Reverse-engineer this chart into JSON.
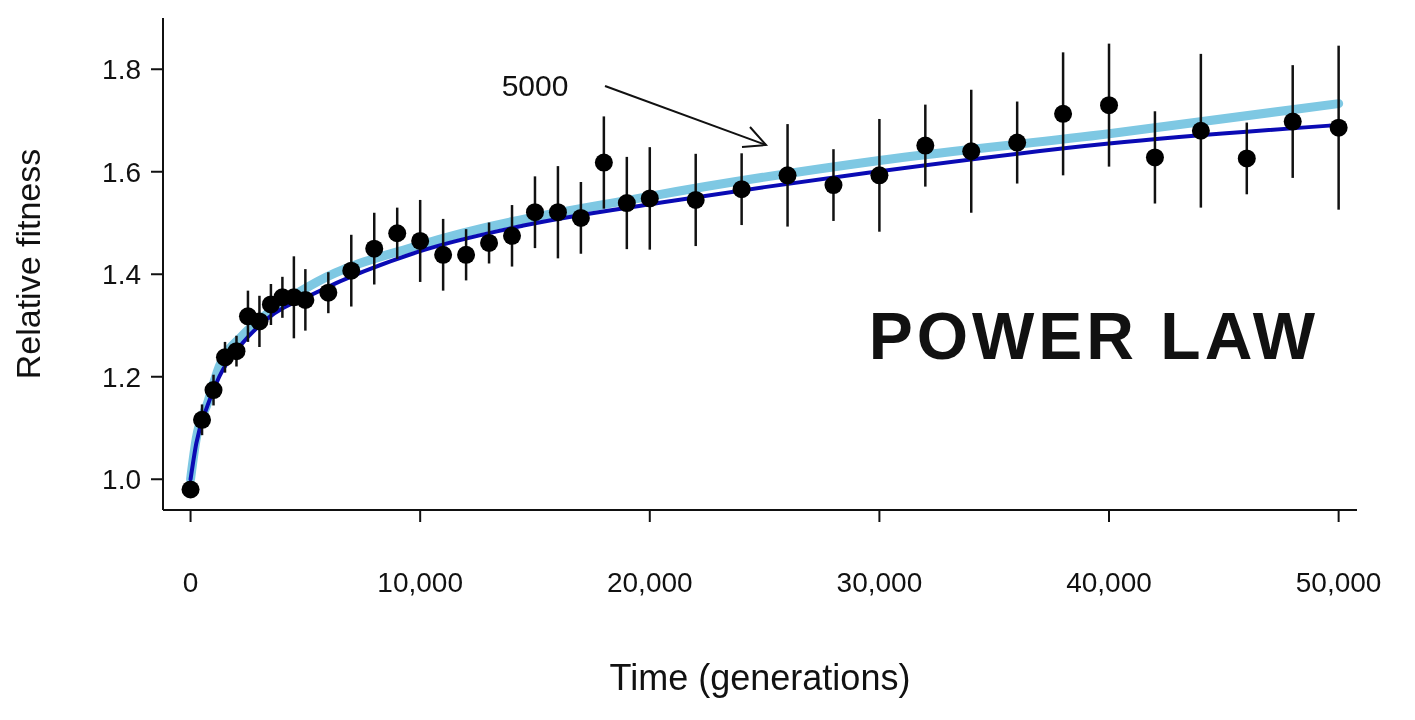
{
  "chart_data": {
    "type": "scatter",
    "xlabel": "Time (generations)",
    "ylabel": "Relative fitness",
    "xlim": [
      -1200,
      50800
    ],
    "ylim": [
      0.94,
      1.9
    ],
    "xticks": [
      0,
      {
        "value": 10000,
        "label": "10,000"
      },
      {
        "value": 20000,
        "label": "20,000"
      },
      {
        "value": 30000,
        "label": "30,000"
      },
      {
        "value": 40000,
        "label": "40,000"
      },
      {
        "value": 50000,
        "label": "50,000"
      }
    ],
    "yticks": [
      {
        "value": 1,
        "label": "1.0"
      },
      {
        "value": 1.2,
        "label": "1.2"
      },
      {
        "value": 1.4,
        "label": "1.4"
      },
      {
        "value": 1.6,
        "label": "1.6"
      },
      {
        "value": 1.8,
        "label": "1.8"
      }
    ],
    "grid": false,
    "marker": "circle",
    "annotations": [
      "5000",
      "POWER LAW"
    ],
    "series": [
      {
        "type": "line",
        "color": "#7ec8e3",
        "marker": "none",
        "x": [
          0,
          250,
          750,
          1250,
          2250,
          3250,
          5500,
          10000,
          20000,
          30000,
          40000,
          50000
        ],
        "values": [
          1.0,
          1.08,
          1.15,
          1.22,
          1.28,
          1.32,
          1.385,
          1.457,
          1.552,
          1.622,
          1.674,
          1.733
        ]
      },
      {
        "type": "line",
        "color": "#0a0ab4",
        "marker": "none",
        "x": [
          0,
          250,
          750,
          1250,
          2250,
          3250,
          5500,
          10000,
          14500,
          20500,
          25000,
          29500,
          40000,
          49600
        ],
        "values": [
          1.0,
          1.07,
          1.145,
          1.2,
          1.265,
          1.31,
          1.365,
          1.445,
          1.495,
          1.54,
          1.57,
          1.598,
          1.655,
          1.69
        ]
      },
      {
        "type": "scatter",
        "color": "#000000",
        "x": [
          0,
          500,
          1000,
          1500,
          2000,
          2500,
          3000,
          3500,
          4000,
          4500,
          5000,
          6000,
          7000,
          8000,
          9000,
          10000,
          11000,
          12000,
          13000,
          14000,
          15000,
          16000,
          17000,
          18000,
          19000,
          20000,
          22000,
          24000,
          26000,
          28000,
          30000,
          32000,
          34000,
          36000,
          38000,
          40000,
          42000,
          44000,
          46000,
          48000,
          50000
        ],
        "values": [
          0.98,
          1.116,
          1.174,
          1.238,
          1.25,
          1.318,
          1.308,
          1.341,
          1.355,
          1.355,
          1.35,
          1.364,
          1.407,
          1.45,
          1.48,
          1.465,
          1.438,
          1.438,
          1.461,
          1.475,
          1.521,
          1.521,
          1.51,
          1.618,
          1.539,
          1.548,
          1.545,
          1.566,
          1.593,
          1.574,
          1.593,
          1.651,
          1.64,
          1.657,
          1.713,
          1.73,
          1.628,
          1.68,
          1.626,
          1.698,
          1.686
        ],
        "errors": [
          null,
          0.03,
          0.03,
          0.03,
          0.03,
          0.05,
          0.05,
          0.04,
          0.04,
          0.08,
          0.06,
          0.04,
          0.07,
          0.07,
          0.05,
          0.08,
          0.07,
          0.05,
          0.04,
          0.06,
          0.07,
          0.09,
          0.07,
          0.09,
          0.09,
          0.1,
          0.09,
          0.07,
          0.1,
          0.07,
          0.11,
          0.08,
          0.12,
          0.08,
          0.12,
          0.12,
          0.09,
          0.15,
          0.07,
          0.11,
          0.16
        ]
      }
    ]
  }
}
